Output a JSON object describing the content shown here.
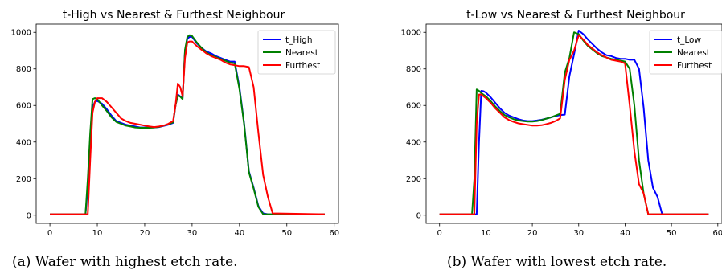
{
  "figure": {
    "captions": [
      "(a) Wafer with highest etch rate.",
      "(b) Wafer with lowest etch rate."
    ]
  },
  "chart_data": [
    {
      "type": "line",
      "title": "t-High vs Nearest & Furthest Neighbour",
      "xlabel": "",
      "ylabel": "",
      "xlim": [
        -2.9,
        60.9
      ],
      "ylim": [
        -45,
        1045
      ],
      "xticks": [
        0,
        10,
        20,
        30,
        40,
        50,
        60
      ],
      "yticks": [
        0,
        200,
        400,
        600,
        800,
        1000
      ],
      "grid": false,
      "legend_position": "top-right",
      "series": [
        {
          "name": "t_High",
          "color": "#0000ff",
          "x": [
            0,
            7,
            7.5,
            8,
            8.5,
            9,
            9.5,
            10,
            11,
            12,
            13,
            14,
            15,
            16,
            17,
            18,
            19,
            20,
            21,
            22,
            23,
            24,
            25,
            26,
            26.5,
            27,
            27.5,
            28,
            28.5,
            29,
            29.5,
            30,
            31,
            32,
            33,
            34,
            35,
            36,
            37,
            38,
            39,
            40,
            41,
            42,
            43,
            44,
            45,
            46,
            58
          ],
          "y": [
            5,
            5,
            5,
            150,
            400,
            590,
            620,
            625,
            610,
            580,
            545,
            515,
            505,
            495,
            490,
            485,
            480,
            480,
            480,
            480,
            482,
            488,
            495,
            505,
            600,
            660,
            650,
            640,
            900,
            965,
            975,
            975,
            940,
            915,
            895,
            885,
            870,
            860,
            850,
            840,
            840,
            700,
            500,
            240,
            150,
            50,
            10,
            5,
            5
          ]
        },
        {
          "name": "Nearest",
          "color": "#008000",
          "x": [
            0,
            7,
            7.5,
            8,
            8.5,
            9,
            9.5,
            10,
            11,
            12,
            13,
            14,
            15,
            16,
            17,
            18,
            19,
            20,
            21,
            22,
            23,
            24,
            25,
            26,
            26.5,
            27,
            27.5,
            28,
            28.5,
            29,
            29.5,
            30,
            31,
            32,
            33,
            34,
            35,
            36,
            37,
            38,
            39,
            40,
            41,
            42,
            43,
            44,
            45,
            46,
            58
          ],
          "y": [
            5,
            5,
            5,
            200,
            450,
            635,
            640,
            635,
            600,
            570,
            535,
            510,
            500,
            490,
            485,
            480,
            478,
            478,
            478,
            480,
            483,
            490,
            497,
            508,
            600,
            655,
            648,
            635,
            905,
            975,
            985,
            980,
            945,
            915,
            890,
            875,
            865,
            855,
            845,
            835,
            830,
            690,
            495,
            235,
            145,
            45,
            5,
            5,
            5
          ]
        },
        {
          "name": "Furthest",
          "color": "#ff0000",
          "x": [
            0,
            8,
            8.5,
            9,
            9.5,
            10,
            11,
            12,
            13,
            14,
            15,
            16,
            17,
            18,
            19,
            20,
            21,
            22,
            23,
            24,
            25,
            26,
            26.5,
            27,
            27.5,
            28,
            28.5,
            29,
            29.5,
            30,
            31,
            32,
            33,
            34,
            35,
            36,
            37,
            38,
            39,
            40,
            41,
            42,
            43,
            44,
            45,
            46,
            47,
            58
          ],
          "y": [
            5,
            5,
            300,
            560,
            620,
            640,
            640,
            620,
            590,
            560,
            530,
            515,
            505,
            500,
            495,
            490,
            485,
            482,
            485,
            490,
            500,
            515,
            600,
            720,
            700,
            650,
            860,
            945,
            950,
            950,
            925,
            905,
            885,
            870,
            860,
            850,
            835,
            825,
            820,
            815,
            815,
            810,
            700,
            450,
            220,
            100,
            10,
            5
          ]
        }
      ]
    },
    {
      "type": "line",
      "title": "t-Low vs Nearest & Furthest Neighbour",
      "xlabel": "",
      "ylabel": "",
      "xlim": [
        -2.9,
        60.9
      ],
      "ylim": [
        -45,
        1045
      ],
      "xticks": [
        0,
        10,
        20,
        30,
        40,
        50,
        60
      ],
      "yticks": [
        0,
        200,
        400,
        600,
        800,
        1000
      ],
      "grid": false,
      "legend_position": "top-right",
      "series": [
        {
          "name": "t_Low",
          "color": "#0000ff",
          "x": [
            0,
            8,
            8.5,
            9,
            9.5,
            10,
            11,
            12,
            13,
            14,
            15,
            16,
            17,
            18,
            19,
            20,
            21,
            22,
            23,
            24,
            25,
            26,
            27,
            28,
            29,
            30,
            31,
            32,
            33,
            34,
            35,
            36,
            37,
            38,
            39,
            40,
            41,
            42,
            43,
            44,
            45,
            46,
            47,
            48,
            58
          ],
          "y": [
            5,
            5,
            400,
            680,
            678,
            670,
            645,
            615,
            585,
            560,
            545,
            535,
            525,
            518,
            515,
            515,
            518,
            522,
            528,
            535,
            542,
            548,
            550,
            760,
            880,
            1010,
            990,
            960,
            935,
            910,
            890,
            875,
            870,
            860,
            855,
            855,
            850,
            850,
            800,
            590,
            300,
            150,
            100,
            5,
            5
          ]
        },
        {
          "name": "Nearest",
          "color": "#008000",
          "x": [
            0,
            7,
            7.5,
            8,
            8.5,
            9,
            10,
            11,
            12,
            13,
            14,
            15,
            16,
            17,
            18,
            19,
            20,
            21,
            22,
            23,
            24,
            25,
            26,
            27,
            28,
            29,
            30,
            31,
            32,
            33,
            34,
            35,
            36,
            37,
            38,
            39,
            40,
            41,
            42,
            43,
            44,
            45,
            46,
            58
          ],
          "y": [
            5,
            5,
            200,
            688,
            680,
            668,
            650,
            625,
            595,
            570,
            548,
            535,
            525,
            518,
            515,
            512,
            512,
            515,
            520,
            528,
            535,
            545,
            555,
            780,
            860,
            1000,
            990,
            955,
            925,
            905,
            885,
            870,
            862,
            855,
            850,
            845,
            840,
            800,
            600,
            300,
            120,
            5,
            5,
            5
          ]
        },
        {
          "name": "Furthest",
          "color": "#ff0000",
          "x": [
            0,
            7.5,
            8,
            8.5,
            9,
            10,
            11,
            12,
            13,
            14,
            15,
            16,
            17,
            18,
            19,
            20,
            21,
            22,
            23,
            24,
            25,
            26,
            27,
            28,
            29,
            30,
            31,
            32,
            33,
            34,
            35,
            36,
            37,
            38,
            39,
            40,
            41,
            42,
            43,
            44,
            45,
            58
          ],
          "y": [
            5,
            5,
            500,
            660,
            660,
            640,
            615,
            585,
            560,
            535,
            520,
            510,
            502,
            498,
            494,
            490,
            490,
            492,
            498,
            505,
            515,
            530,
            740,
            850,
            900,
            985,
            960,
            930,
            910,
            890,
            875,
            862,
            850,
            845,
            840,
            830,
            600,
            350,
            170,
            120,
            5,
            5
          ]
        }
      ]
    }
  ]
}
